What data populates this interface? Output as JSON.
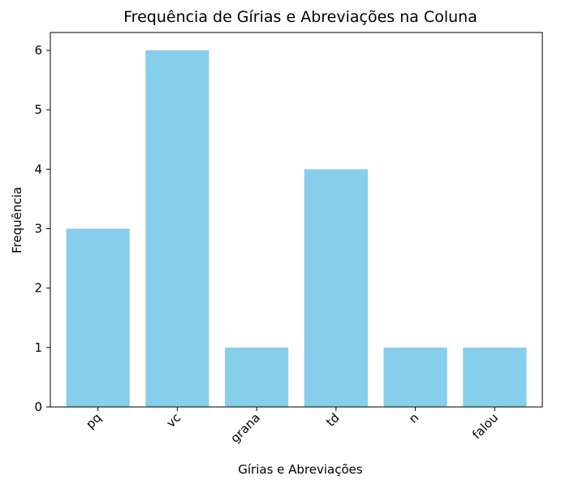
{
  "chart_data": {
    "type": "bar",
    "title": "Frequência de Gírias e Abreviações na Coluna",
    "xlabel": "Gírias e Abreviações",
    "ylabel": "Frequência",
    "categories": [
      "pq",
      "vc",
      "grana",
      "td",
      "n",
      "falou"
    ],
    "values": [
      3,
      6,
      1,
      4,
      1,
      1
    ],
    "ylim": [
      0,
      6.3
    ],
    "yticks": [
      "0",
      "1",
      "2",
      "3",
      "4",
      "5",
      "6"
    ],
    "x_tick_rotation_deg": 45,
    "grid": false,
    "legend": "none",
    "bar_color": "#87CEEB",
    "axis_color": "#000000"
  }
}
